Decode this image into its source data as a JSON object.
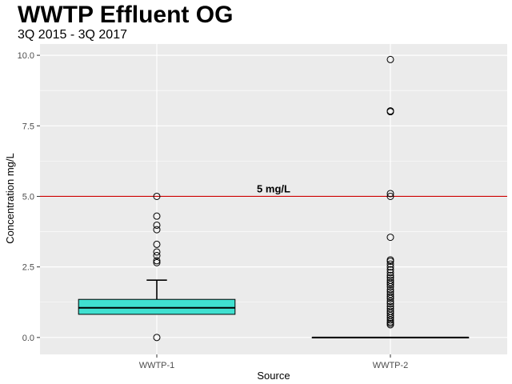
{
  "chart_data": {
    "type": "boxplot",
    "title": "WWTP Effluent OG",
    "subtitle": "3Q 2015 - 3Q 2017",
    "xlabel": "Source",
    "ylabel": "Concentration mg/L",
    "ylim": [
      -0.6,
      10.4
    ],
    "yticks": [
      0.0,
      2.5,
      5.0,
      7.5,
      10.0
    ],
    "ytick_labels": [
      "0.0",
      "2.5",
      "5.0",
      "7.5",
      "10.0"
    ],
    "categories": [
      "WWTP-1",
      "WWTP-2"
    ],
    "grid": true,
    "reference_line": {
      "value": 5.0,
      "label": "5 mg/L",
      "color": "#cc0000"
    },
    "boxes": [
      {
        "category": "WWTP-1",
        "fill": "#40e0d0",
        "q1": 0.82,
        "median": 1.05,
        "q3": 1.35,
        "whisker_low": 0.82,
        "whisker_high": 2.03,
        "outliers": [
          0.0,
          2.65,
          2.72,
          2.9,
          3.03,
          3.3,
          3.82,
          3.98,
          4.3,
          5.0
        ]
      },
      {
        "category": "WWTP-2",
        "fill": "#40e0d0",
        "q1": 0.0,
        "median": 0.0,
        "q3": 0.0,
        "whisker_low": 0.0,
        "whisker_high": 0.0,
        "outliers": [
          0.45,
          0.5,
          0.55,
          0.62,
          0.7,
          0.78,
          0.86,
          0.93,
          1.02,
          1.1,
          1.2,
          1.28,
          1.38,
          1.45,
          1.53,
          1.62,
          1.7,
          1.8,
          1.88,
          1.95,
          2.03,
          2.12,
          2.2,
          2.3,
          2.4,
          2.5,
          2.6,
          2.7,
          2.75,
          3.55,
          5.0,
          5.1,
          8.0,
          8.03,
          9.85
        ]
      }
    ]
  }
}
